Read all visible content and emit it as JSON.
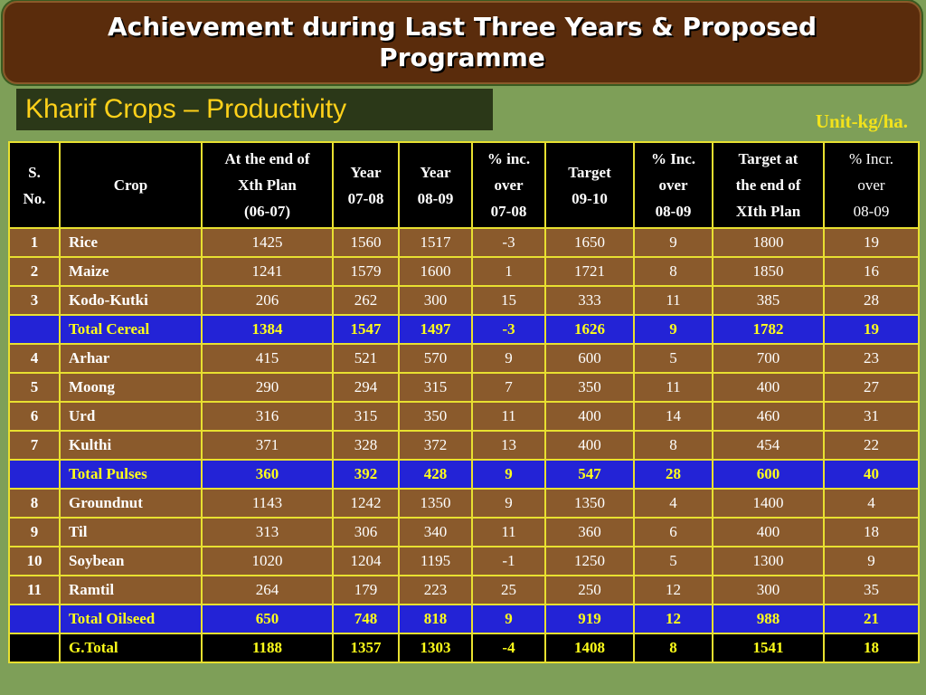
{
  "title": "Achievement during Last Three Years & Proposed Programme",
  "subtitle": "Kharif Crops – Productivity",
  "unit": "Unit-kg/ha.",
  "columns": [
    "S.\nNo.",
    "Crop",
    "At the end of\nXth Plan\n(06-07)",
    "Year\n07-08",
    "Year\n08-09",
    "% inc.\nover\n07-08",
    "Target\n09-10",
    "% Inc.\nover\n08-09",
    "Target at\nthe end of\nXIth Plan",
    "% Incr.\nover\n08-09"
  ],
  "rows": [
    {
      "type": "normal",
      "cells": [
        "1",
        "Rice",
        "1425",
        "1560",
        "1517",
        "-3",
        "1650",
        "9",
        "1800",
        "19"
      ]
    },
    {
      "type": "normal",
      "cells": [
        "2",
        "Maize",
        "1241",
        "1579",
        "1600",
        "1",
        "1721",
        "8",
        "1850",
        "16"
      ]
    },
    {
      "type": "normal",
      "cells": [
        "3",
        "Kodo-Kutki",
        "206",
        "262",
        "300",
        "15",
        "333",
        "11",
        "385",
        "28"
      ]
    },
    {
      "type": "total",
      "cells": [
        "",
        "Total Cereal",
        "1384",
        "1547",
        "1497",
        "-3",
        "1626",
        "9",
        "1782",
        "19"
      ]
    },
    {
      "type": "normal",
      "cells": [
        "4",
        "Arhar",
        "415",
        "521",
        "570",
        "9",
        "600",
        "5",
        "700",
        "23"
      ]
    },
    {
      "type": "normal",
      "cells": [
        "5",
        "Moong",
        "290",
        "294",
        "315",
        "7",
        "350",
        "11",
        "400",
        "27"
      ]
    },
    {
      "type": "normal",
      "cells": [
        "6",
        "Urd",
        "316",
        "315",
        "350",
        "11",
        "400",
        "14",
        "460",
        "31"
      ]
    },
    {
      "type": "normal",
      "cells": [
        "7",
        "Kulthi",
        "371",
        "328",
        "372",
        "13",
        "400",
        "8",
        "454",
        "22"
      ]
    },
    {
      "type": "total",
      "cells": [
        "",
        "Total Pulses",
        "360",
        "392",
        "428",
        "9",
        "547",
        "28",
        "600",
        "40"
      ]
    },
    {
      "type": "normal",
      "cells": [
        "8",
        "Groundnut",
        "1143",
        "1242",
        "1350",
        "9",
        "1350",
        "4",
        "1400",
        "4"
      ]
    },
    {
      "type": "normal",
      "cells": [
        "9",
        "Til",
        "313",
        "306",
        "340",
        "11",
        "360",
        "6",
        "400",
        "18"
      ]
    },
    {
      "type": "normal",
      "cells": [
        "10",
        "Soybean",
        "1020",
        "1204",
        "1195",
        "-1",
        "1250",
        "5",
        "1300",
        "9"
      ]
    },
    {
      "type": "normal",
      "cells": [
        "11",
        "Ramtil",
        "264",
        "179",
        "223",
        "25",
        "250",
        "12",
        "300",
        "35"
      ]
    },
    {
      "type": "total",
      "cells": [
        "",
        "Total Oilseed",
        "650",
        "748",
        "818",
        "9",
        "919",
        "12",
        "988",
        "21"
      ]
    },
    {
      "type": "grand",
      "cells": [
        "",
        "G.Total",
        "1188",
        "1357",
        "1303",
        "-4",
        "1408",
        "8",
        "1541",
        "18"
      ]
    }
  ]
}
